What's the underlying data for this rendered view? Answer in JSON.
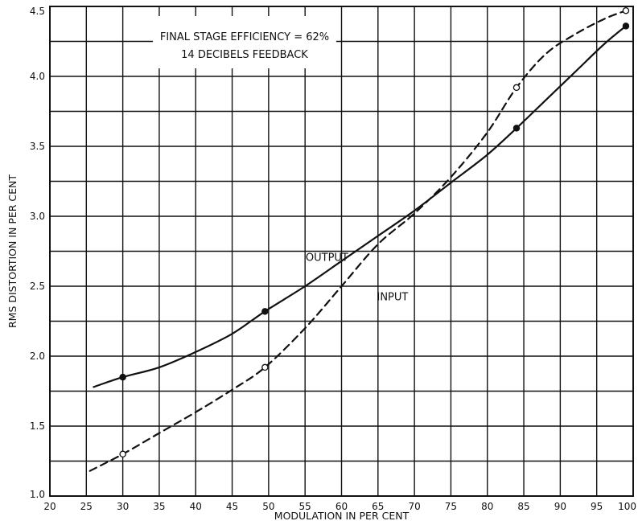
{
  "chart_data": {
    "type": "line",
    "xlabel": "MODULATION IN PER CENT",
    "ylabel": "RMS DISTORTION IN PER CENT",
    "xlim": [
      20,
      100
    ],
    "ylim": [
      1.0,
      4.5
    ],
    "x_ticks": [
      "20",
      "25",
      "30",
      "35",
      "40",
      "45",
      "50",
      "55",
      "60",
      "65",
      "70",
      "75",
      "80",
      "85",
      "90",
      "95",
      "100"
    ],
    "y_ticks": [
      "1.0",
      "1.5",
      "2.0",
      "2.5",
      "3.0",
      "3.5",
      "4.0",
      "4.5"
    ],
    "grid": true,
    "annotation_lines": [
      "FINAL STAGE EFFICIENCY = 62%",
      "14 DECIBELS FEEDBACK"
    ],
    "series": [
      {
        "name": "OUTPUT",
        "style": "solid",
        "marker": "filled",
        "points": [
          [
            30,
            1.85
          ],
          [
            49.5,
            2.32
          ],
          [
            84,
            3.63
          ],
          [
            99,
            4.36
          ]
        ],
        "curve": [
          [
            26,
            1.78
          ],
          [
            30,
            1.85
          ],
          [
            35,
            1.92
          ],
          [
            40,
            2.03
          ],
          [
            45,
            2.16
          ],
          [
            49.5,
            2.32
          ],
          [
            55,
            2.5
          ],
          [
            60,
            2.68
          ],
          [
            65,
            2.86
          ],
          [
            70,
            3.04
          ],
          [
            75,
            3.24
          ],
          [
            80,
            3.44
          ],
          [
            84,
            3.63
          ],
          [
            88,
            3.83
          ],
          [
            92,
            4.03
          ],
          [
            96,
            4.23
          ],
          [
            99,
            4.36
          ]
        ]
      },
      {
        "name": "INPUT",
        "style": "dashed",
        "marker": "open",
        "points": [
          [
            30,
            1.3
          ],
          [
            49.5,
            1.92
          ],
          [
            84,
            3.92
          ],
          [
            99,
            4.47
          ]
        ],
        "curve": [
          [
            25.5,
            1.18
          ],
          [
            30,
            1.3
          ],
          [
            35,
            1.45
          ],
          [
            40,
            1.6
          ],
          [
            45,
            1.76
          ],
          [
            49.5,
            1.92
          ],
          [
            55,
            2.2
          ],
          [
            60,
            2.5
          ],
          [
            65,
            2.8
          ],
          [
            70,
            3.02
          ],
          [
            75,
            3.28
          ],
          [
            80,
            3.6
          ],
          [
            84,
            3.92
          ],
          [
            88,
            4.16
          ],
          [
            92,
            4.3
          ],
          [
            96,
            4.41
          ],
          [
            99,
            4.47
          ]
        ]
      }
    ],
    "series_labels": [
      {
        "text": "OUTPUT",
        "x": 58,
        "y": 2.68
      },
      {
        "text": "INPUT",
        "x": 67,
        "y": 2.4
      }
    ]
  }
}
